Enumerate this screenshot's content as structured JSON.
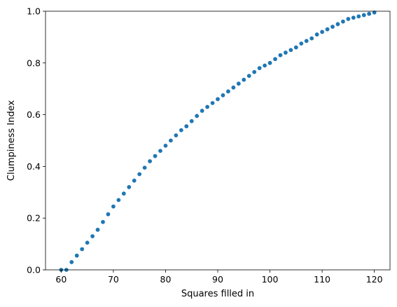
{
  "chart_data": {
    "type": "scatter",
    "xlabel": "Squares filled in",
    "ylabel": "Clumpiness Index",
    "xlim": [
      57,
      123
    ],
    "ylim": [
      0,
      1.0
    ],
    "xticks": [
      60,
      70,
      80,
      90,
      100,
      110,
      120
    ],
    "xtick_labels": [
      "60",
      "70",
      "80",
      "90",
      "100",
      "110",
      "120"
    ],
    "yticks": [
      0.0,
      0.2,
      0.4,
      0.6,
      0.8,
      1.0
    ],
    "ytick_labels": [
      "0.0",
      "0.2",
      "0.4",
      "0.6",
      "0.8",
      "1.0"
    ],
    "grid": false,
    "marker_color": "#1f77b4",
    "series": [
      {
        "x": [
          60,
          61,
          62,
          63,
          64,
          65,
          66,
          67,
          68,
          69,
          70,
          71,
          72,
          73,
          74,
          75,
          76,
          77,
          78,
          79,
          80,
          81,
          82,
          83,
          84,
          85,
          86,
          87,
          88,
          89,
          90,
          91,
          92,
          93,
          94,
          95,
          96,
          97,
          98,
          99,
          100,
          101,
          102,
          103,
          104,
          105,
          106,
          107,
          108,
          109,
          110,
          111,
          112,
          113,
          114,
          115,
          116,
          117,
          118,
          119,
          120
        ],
        "y": [
          0.0,
          0.0,
          0.03,
          0.055,
          0.08,
          0.105,
          0.13,
          0.155,
          0.185,
          0.215,
          0.245,
          0.27,
          0.295,
          0.32,
          0.345,
          0.37,
          0.395,
          0.42,
          0.44,
          0.46,
          0.48,
          0.5,
          0.52,
          0.54,
          0.555,
          0.575,
          0.595,
          0.615,
          0.63,
          0.645,
          0.66,
          0.675,
          0.69,
          0.705,
          0.72,
          0.735,
          0.75,
          0.765,
          0.78,
          0.79,
          0.8,
          0.815,
          0.83,
          0.84,
          0.85,
          0.86,
          0.875,
          0.885,
          0.895,
          0.91,
          0.92,
          0.93,
          0.94,
          0.95,
          0.96,
          0.97,
          0.975,
          0.98,
          0.985,
          0.99,
          0.995
        ]
      }
    ]
  }
}
